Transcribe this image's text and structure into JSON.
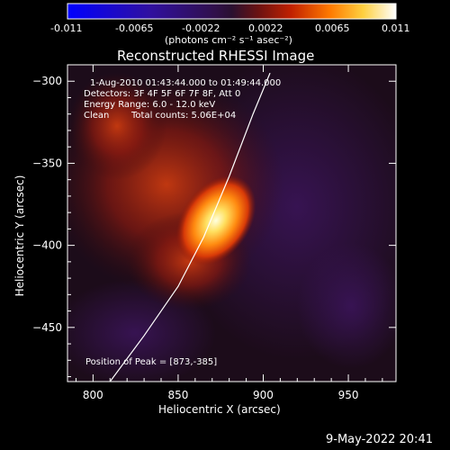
{
  "colorbar": {
    "ticks": [
      "-0.011",
      "-0.0065",
      "-0.0022",
      "0.0022",
      "0.0065",
      "0.011"
    ],
    "unit_label": "(photons cm⁻² s⁻¹ asec⁻²)"
  },
  "chart_data": {
    "type": "heatmap",
    "title": "Reconstructed RHESSI Image",
    "xlabel": "Heliocentric X (arcsec)",
    "ylabel": "Heliocentric Y (arcsec)",
    "xlim": [
      785,
      978
    ],
    "ylim": [
      -483,
      -290
    ],
    "xticks": [
      800,
      850,
      900,
      950
    ],
    "yticks": [
      -300,
      -350,
      -400,
      -450
    ],
    "xtick_labels": [
      "800",
      "850",
      "900",
      "950"
    ],
    "ytick_labels": [
      "−300",
      "−350",
      "−400",
      "−450"
    ],
    "color_range": [
      -0.011,
      0.011
    ],
    "peak": {
      "x": 873,
      "y": -385
    },
    "annotations": {
      "time_range": "1-Aug-2010 01:43:44.000 to 01:49:44.000",
      "detectors": "Detectors: 3F 4F 5F 6F 7F 8F, Att 0",
      "energy": "Energy Range: 6.0 - 12.0 keV",
      "method": "Clean",
      "counts": "Total counts: 5.06E+04",
      "peak_text": "Position of Peak = [873,-385]"
    },
    "limb_curve": [
      [
        810,
        -483
      ],
      [
        830,
        -455
      ],
      [
        850,
        -425
      ],
      [
        865,
        -395
      ],
      [
        880,
        -358
      ],
      [
        894,
        -320
      ],
      [
        904,
        -295
      ]
    ]
  },
  "footer": {
    "date": "9-May-2022 20:41"
  }
}
